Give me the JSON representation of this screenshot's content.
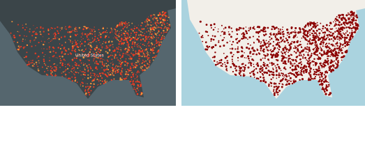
{
  "left_map": {
    "labels": [
      "United States"
    ]
  }
}
